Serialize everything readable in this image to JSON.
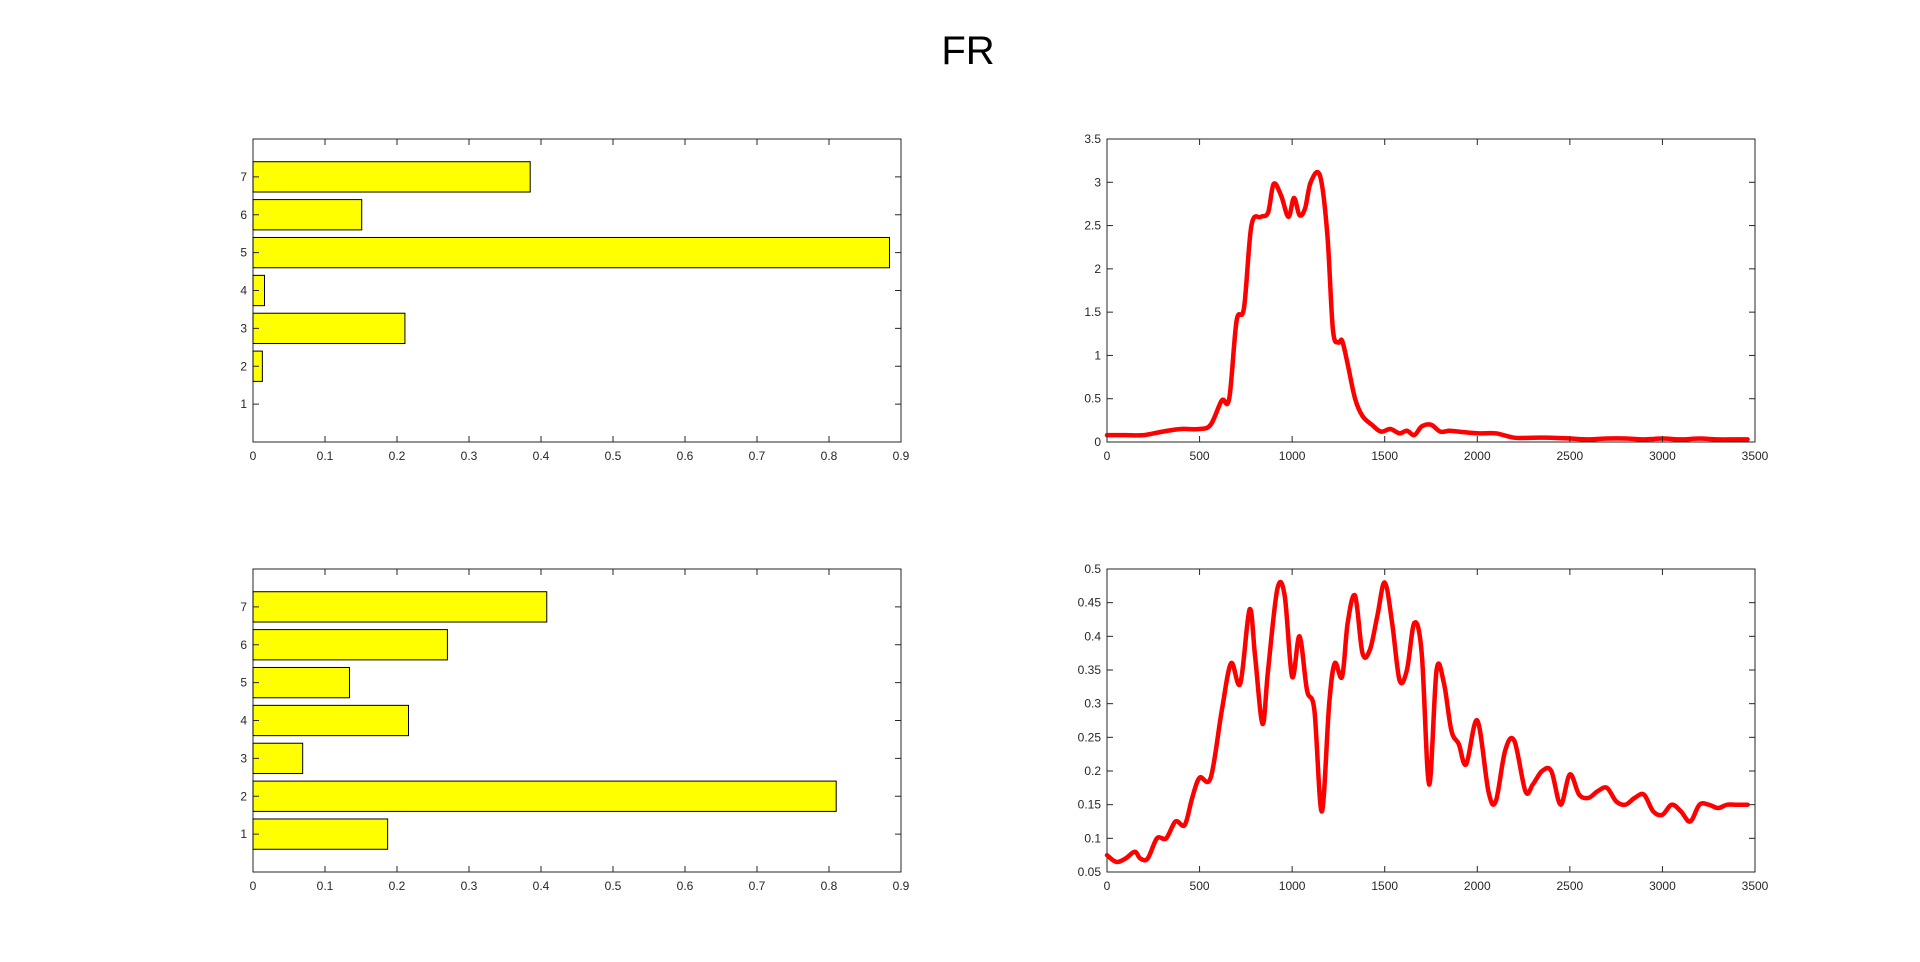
{
  "title": "FR",
  "colors": {
    "bar_fill": "#ffff00",
    "bar_edge": "#000000",
    "line": "#ff0000",
    "axis": "#262626",
    "background": "#ffffff"
  },
  "chart_data": [
    {
      "type": "bar",
      "orientation": "horizontal",
      "position": "top-left",
      "categories": [
        "1",
        "2",
        "3",
        "4",
        "5",
        "6",
        "7"
      ],
      "values": [
        0,
        0.013,
        0.211,
        0.016,
        0.884,
        0.151,
        0.385
      ],
      "xlim": [
        0,
        0.9
      ],
      "ylim": [
        0,
        8
      ],
      "xticks": [
        0,
        0.1,
        0.2,
        0.3,
        0.4,
        0.5,
        0.6,
        0.7,
        0.8,
        0.9
      ],
      "xtick_labels": [
        "0",
        "0.1",
        "0.2",
        "0.3",
        "0.4",
        "0.5",
        "0.6",
        "0.7",
        "0.8",
        "0.9"
      ],
      "yticks": [
        1,
        2,
        3,
        4,
        5,
        6,
        7
      ],
      "ytick_labels": [
        "1",
        "2",
        "3",
        "4",
        "5",
        "6",
        "7"
      ]
    },
    {
      "type": "line",
      "position": "top-right",
      "x": [
        0,
        100,
        200,
        300,
        400,
        500,
        560,
        620,
        660,
        700,
        740,
        780,
        830,
        870,
        900,
        940,
        980,
        1010,
        1040,
        1070,
        1100,
        1150,
        1190,
        1220,
        1250,
        1270,
        1300,
        1340,
        1380,
        1430,
        1480,
        1530,
        1580,
        1620,
        1660,
        1700,
        1750,
        1800,
        1850,
        1900,
        2000,
        2100,
        2200,
        2300,
        2400,
        2500,
        2600,
        2700,
        2800,
        2900,
        3000,
        3100,
        3200,
        3300,
        3400,
        3460
      ],
      "y": [
        0.08,
        0.08,
        0.08,
        0.12,
        0.15,
        0.15,
        0.2,
        0.48,
        0.5,
        1.4,
        1.55,
        2.5,
        2.6,
        2.65,
        2.98,
        2.85,
        2.6,
        2.82,
        2.62,
        2.7,
        3.0,
        3.08,
        2.4,
        1.3,
        1.15,
        1.17,
        0.9,
        0.5,
        0.3,
        0.2,
        0.12,
        0.15,
        0.1,
        0.13,
        0.08,
        0.18,
        0.2,
        0.12,
        0.13,
        0.12,
        0.1,
        0.1,
        0.05,
        0.05,
        0.05,
        0.04,
        0.03,
        0.04,
        0.04,
        0.03,
        0.04,
        0.03,
        0.04,
        0.03,
        0.03,
        0.03
      ],
      "xlim": [
        0,
        3500
      ],
      "ylim": [
        0,
        3.5
      ],
      "xticks": [
        0,
        500,
        1000,
        1500,
        2000,
        2500,
        3000,
        3500
      ],
      "xtick_labels": [
        "0",
        "500",
        "1000",
        "1500",
        "2000",
        "2500",
        "3000",
        "3500"
      ],
      "yticks": [
        0,
        0.5,
        1,
        1.5,
        2,
        2.5,
        3,
        3.5
      ],
      "ytick_labels": [
        "0",
        "0.5",
        "1",
        "1.5",
        "2",
        "2.5",
        "3",
        "3.5"
      ]
    },
    {
      "type": "bar",
      "orientation": "horizontal",
      "position": "bottom-left",
      "categories": [
        "1",
        "2",
        "3",
        "4",
        "5",
        "6",
        "7"
      ],
      "values": [
        0.187,
        0.81,
        0.069,
        0.216,
        0.134,
        0.27,
        0.408
      ],
      "xlim": [
        0,
        0.9
      ],
      "ylim": [
        0,
        8
      ],
      "xticks": [
        0,
        0.1,
        0.2,
        0.3,
        0.4,
        0.5,
        0.6,
        0.7,
        0.8,
        0.9
      ],
      "xtick_labels": [
        "0",
        "0.1",
        "0.2",
        "0.3",
        "0.4",
        "0.5",
        "0.6",
        "0.7",
        "0.8",
        "0.9"
      ],
      "yticks": [
        1,
        2,
        3,
        4,
        5,
        6,
        7
      ],
      "ytick_labels": [
        "1",
        "2",
        "3",
        "4",
        "5",
        "6",
        "7"
      ]
    },
    {
      "type": "line",
      "position": "bottom-right",
      "x": [
        0,
        50,
        100,
        150,
        180,
        220,
        270,
        320,
        370,
        420,
        460,
        500,
        560,
        620,
        670,
        720,
        770,
        800,
        840,
        870,
        920,
        960,
        1000,
        1040,
        1080,
        1120,
        1160,
        1200,
        1230,
        1270,
        1300,
        1340,
        1380,
        1420,
        1460,
        1500,
        1540,
        1580,
        1620,
        1660,
        1700,
        1740,
        1780,
        1820,
        1860,
        1900,
        1940,
        2000,
        2060,
        2100,
        2150,
        2200,
        2260,
        2300,
        2350,
        2400,
        2450,
        2500,
        2550,
        2600,
        2650,
        2700,
        2750,
        2800,
        2850,
        2900,
        2950,
        3000,
        3050,
        3100,
        3150,
        3200,
        3250,
        3300,
        3350,
        3400,
        3440,
        3460
      ],
      "y": [
        0.075,
        0.065,
        0.07,
        0.08,
        0.07,
        0.07,
        0.1,
        0.1,
        0.125,
        0.12,
        0.16,
        0.19,
        0.19,
        0.29,
        0.36,
        0.33,
        0.44,
        0.37,
        0.27,
        0.35,
        0.47,
        0.46,
        0.34,
        0.4,
        0.32,
        0.29,
        0.14,
        0.3,
        0.36,
        0.34,
        0.42,
        0.46,
        0.375,
        0.38,
        0.43,
        0.48,
        0.42,
        0.335,
        0.35,
        0.42,
        0.375,
        0.18,
        0.35,
        0.33,
        0.26,
        0.24,
        0.21,
        0.275,
        0.17,
        0.155,
        0.23,
        0.245,
        0.17,
        0.18,
        0.2,
        0.2,
        0.15,
        0.195,
        0.165,
        0.16,
        0.17,
        0.175,
        0.155,
        0.15,
        0.16,
        0.165,
        0.14,
        0.135,
        0.15,
        0.14,
        0.125,
        0.15,
        0.15,
        0.145,
        0.15,
        0.15,
        0.15,
        0.15
      ],
      "xlim": [
        0,
        3500
      ],
      "ylim": [
        0.05,
        0.5
      ],
      "xticks": [
        0,
        500,
        1000,
        1500,
        2000,
        2500,
        3000,
        3500
      ],
      "xtick_labels": [
        "0",
        "500",
        "1000",
        "1500",
        "2000",
        "2500",
        "3000",
        "3500"
      ],
      "yticks": [
        0.05,
        0.1,
        0.15,
        0.2,
        0.25,
        0.3,
        0.35,
        0.4,
        0.45,
        0.5
      ],
      "ytick_labels": [
        "0.05",
        "0.1",
        "0.15",
        "0.2",
        "0.25",
        "0.3",
        "0.35",
        "0.4",
        "0.45",
        "0.5"
      ]
    }
  ]
}
